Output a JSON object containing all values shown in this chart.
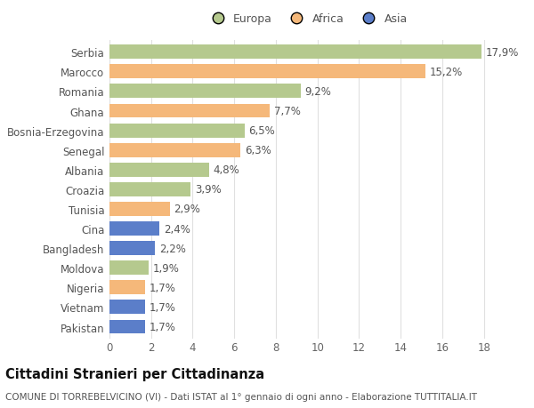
{
  "countries": [
    "Serbia",
    "Marocco",
    "Romania",
    "Ghana",
    "Bosnia-Erzegovina",
    "Senegal",
    "Albania",
    "Croazia",
    "Tunisia",
    "Cina",
    "Bangladesh",
    "Moldova",
    "Nigeria",
    "Vietnam",
    "Pakistan"
  ],
  "values": [
    17.9,
    15.2,
    9.2,
    7.7,
    6.5,
    6.3,
    4.8,
    3.9,
    2.9,
    2.4,
    2.2,
    1.9,
    1.7,
    1.7,
    1.7
  ],
  "labels": [
    "17,9%",
    "15,2%",
    "9,2%",
    "7,7%",
    "6,5%",
    "6,3%",
    "4,8%",
    "3,9%",
    "2,9%",
    "2,4%",
    "2,2%",
    "1,9%",
    "1,7%",
    "1,7%",
    "1,7%"
  ],
  "continents": [
    "Europa",
    "Africa",
    "Europa",
    "Africa",
    "Europa",
    "Africa",
    "Europa",
    "Europa",
    "Africa",
    "Asia",
    "Asia",
    "Europa",
    "Africa",
    "Asia",
    "Asia"
  ],
  "colors": {
    "Europa": "#b5c98e",
    "Africa": "#f5b87a",
    "Asia": "#5b7ec9"
  },
  "xlim": [
    0,
    19
  ],
  "xticks": [
    0,
    2,
    4,
    6,
    8,
    10,
    12,
    14,
    16,
    18
  ],
  "title": "Cittadini Stranieri per Cittadinanza",
  "subtitle": "COMUNE DI TORREBELVICINO (VI) - Dati ISTAT al 1° gennaio di ogni anno - Elaborazione TUTTITALIA.IT",
  "bg_color": "#ffffff",
  "grid_color": "#e0e0e0",
  "bar_height": 0.72,
  "label_fontsize": 8.5,
  "tick_fontsize": 8.5,
  "title_fontsize": 10.5,
  "subtitle_fontsize": 7.5
}
